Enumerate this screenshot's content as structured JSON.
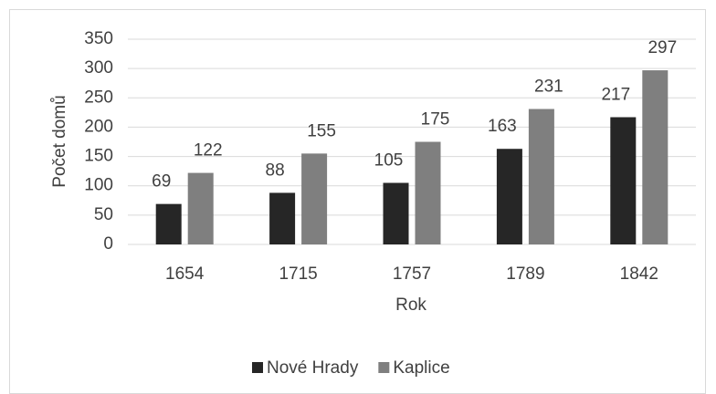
{
  "chart_data": {
    "type": "bar",
    "categories": [
      "1654",
      "1715",
      "1757",
      "1789",
      "1842"
    ],
    "series": [
      {
        "name": "Nové Hrady",
        "color": "#262626",
        "values": [
          69,
          88,
          105,
          163,
          217
        ]
      },
      {
        "name": "Kaplice",
        "color": "#7f7f7f",
        "values": [
          122,
          155,
          175,
          231,
          297
        ]
      }
    ],
    "x_label": "Rok",
    "y_label": "Počet domů",
    "ylim": [
      0,
      350
    ],
    "yticks": [
      0,
      50,
      100,
      150,
      200,
      250,
      300,
      350
    ],
    "grid": true,
    "legend": "bottom"
  }
}
